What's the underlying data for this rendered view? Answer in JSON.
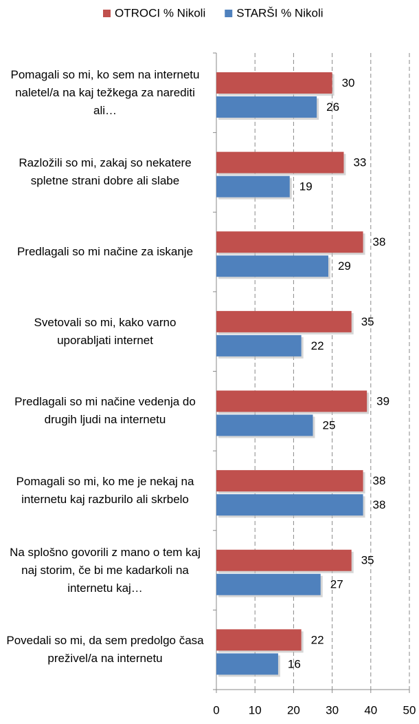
{
  "chart_data": {
    "type": "bar",
    "orientation": "horizontal",
    "categories": [
      "Pomagali so mi, ko sem na internetu naletel/a na kaj težkega za narediti ali…",
      "Razložili so mi, zakaj so nekatere spletne strani dobre ali slabe",
      "Predlagali so mi načine za iskanje",
      "Svetovali so mi, kako varno uporabljati internet",
      "Predlagali so mi načine vedenja do drugih ljudi na internetu",
      "Pomagali so mi, ko me je nekaj na internetu kaj razburilo ali skrbelo",
      "Na splošno govorili z mano o tem kaj naj storim, če bi me kadarkoli na internetu kaj…",
      "Povedali so mi, da sem predolgo časa preživel/a na internetu"
    ],
    "series": [
      {
        "name": "OTROCI % Nikoli",
        "color": "#c0504d",
        "values": [
          30,
          33,
          38,
          35,
          39,
          38,
          35,
          22
        ]
      },
      {
        "name": "STARŠI % Nikoli",
        "color": "#4f81bd",
        "values": [
          26,
          19,
          29,
          22,
          25,
          38,
          27,
          16
        ]
      }
    ],
    "xlim": [
      0,
      50
    ],
    "xticks": [
      0,
      10,
      20,
      30,
      40,
      50
    ],
    "grid": true,
    "legend": "top"
  }
}
